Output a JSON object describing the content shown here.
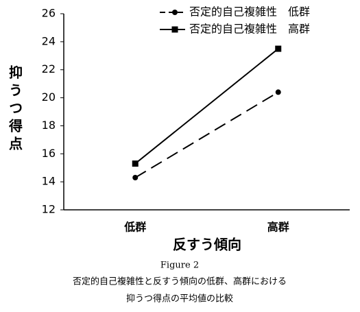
{
  "chart_data": {
    "type": "line",
    "ylabel": "抑うつ得点",
    "xlabel": "反すう傾向",
    "figure_label": "Figure 2",
    "caption": [
      "否定的自己複雑性と反すう傾向の低群、高群における",
      "抑うつ得点の平均値の比較"
    ],
    "categories": [
      "低群",
      "高群"
    ],
    "series": [
      {
        "name": "否定的自己複雑性　低群",
        "color": "#000000",
        "dash": true,
        "marker": "circle",
        "values": [
          14.3,
          20.4
        ]
      },
      {
        "name": "否定的自己複雑性　高群",
        "color": "#000000",
        "dash": false,
        "marker": "square",
        "values": [
          15.3,
          23.5
        ]
      }
    ],
    "ylim": [
      12,
      26
    ],
    "yticks": [
      12,
      14,
      16,
      18,
      20,
      22,
      24,
      26
    ],
    "grid": false
  }
}
